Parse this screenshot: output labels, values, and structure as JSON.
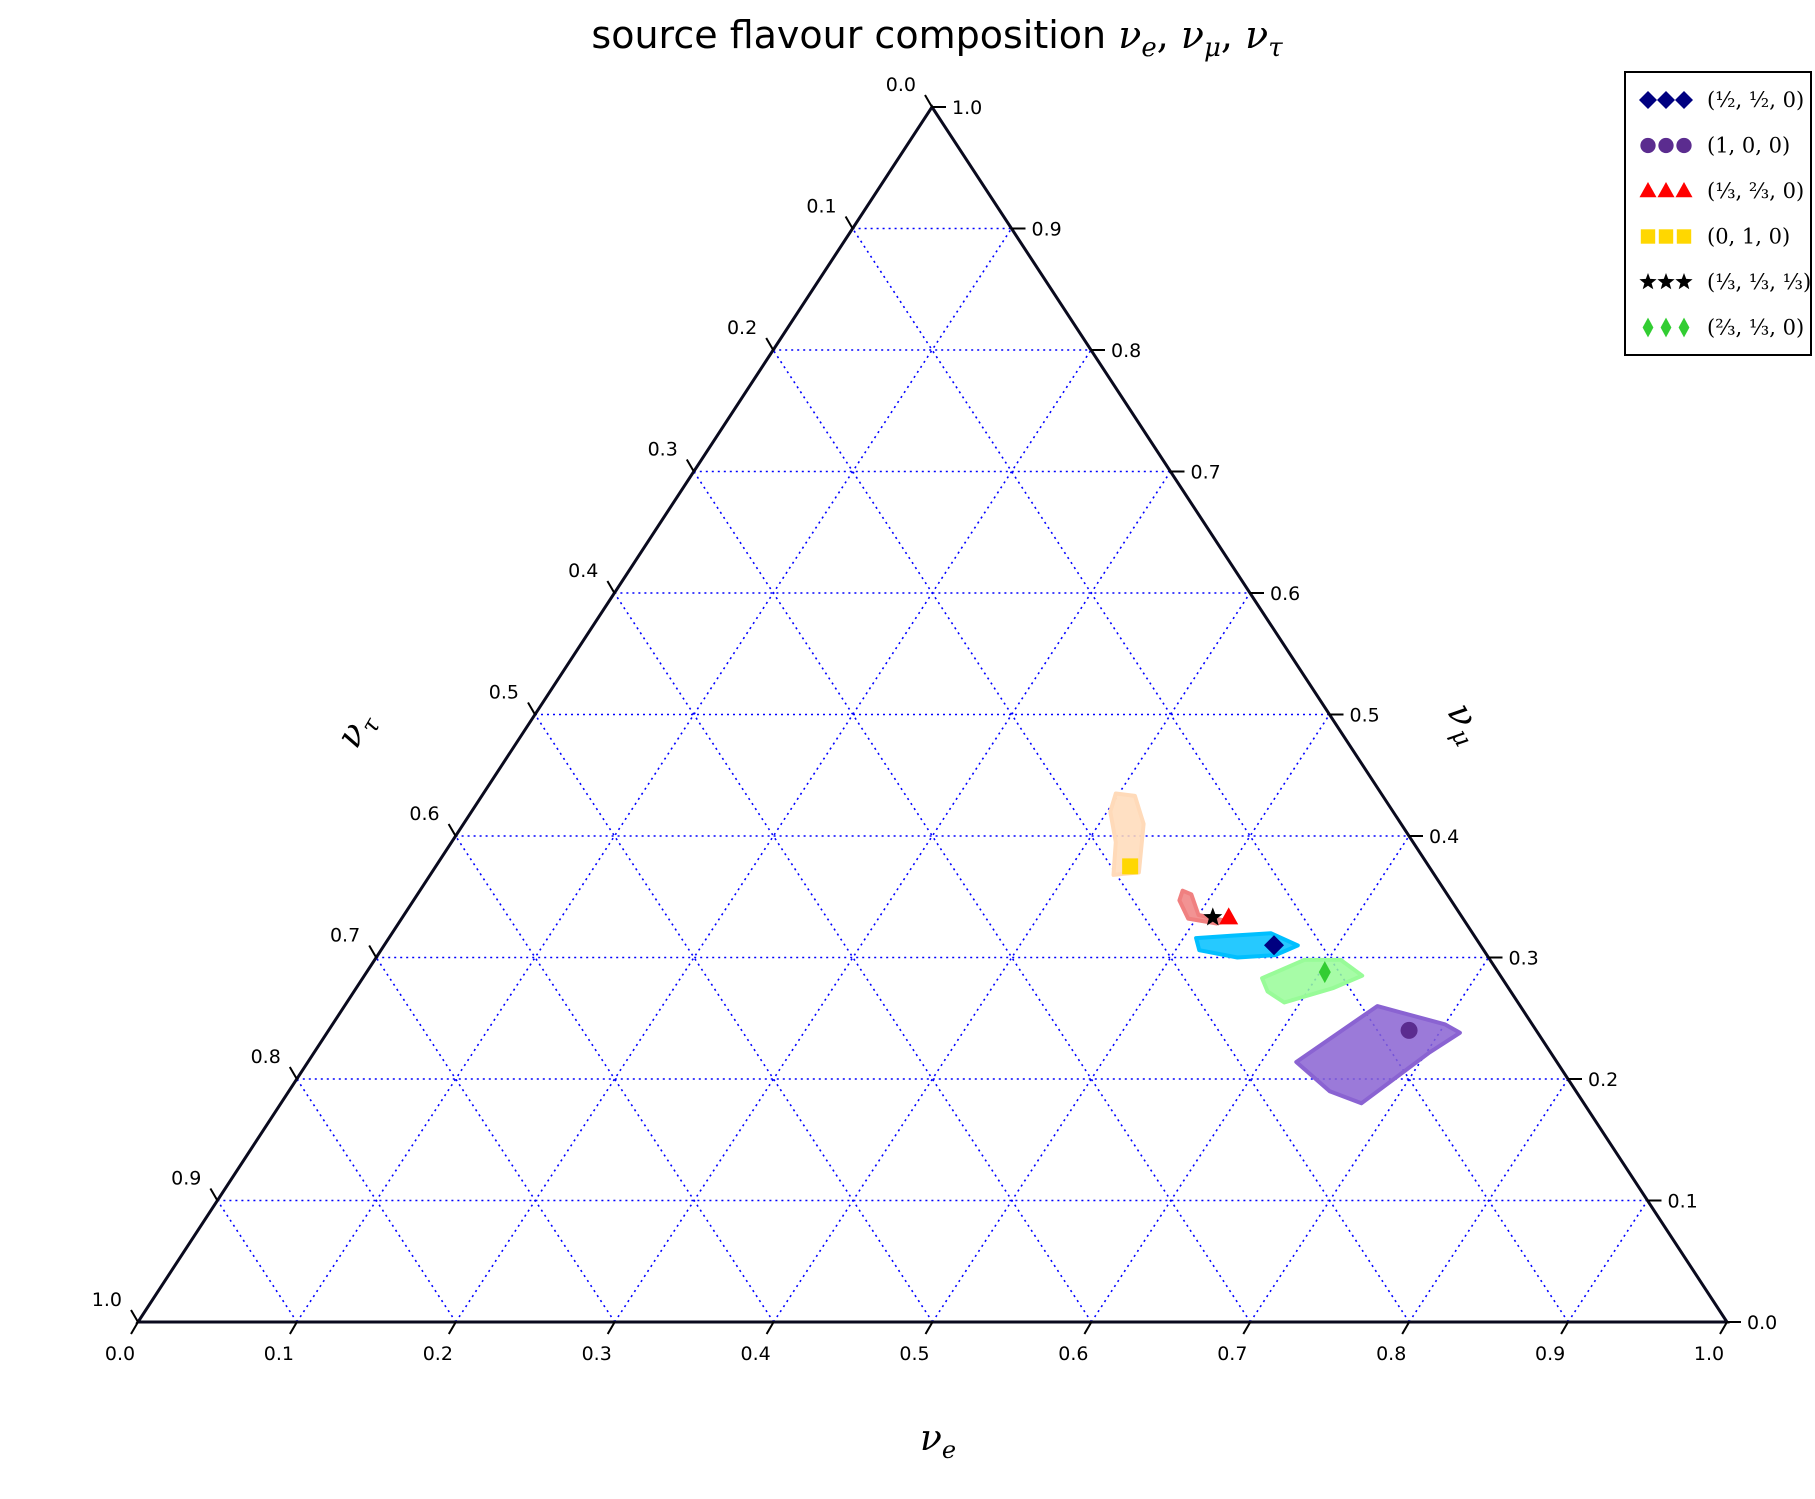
{
  "chart_data": {
    "type": "scatter",
    "subtype": "ternary",
    "title": "source flavour composition",
    "title_math": [
      "ν",
      "e",
      ", ",
      "ν",
      "μ",
      ", ",
      "ν",
      "τ"
    ],
    "axes": {
      "bottom": {
        "label": "ν",
        "label_sub": "e",
        "range": [
          0,
          1
        ]
      },
      "right": {
        "label": "ν",
        "label_sub": "μ",
        "range": [
          0,
          1
        ]
      },
      "left": {
        "label": "ν",
        "label_sub": "τ",
        "range": [
          0,
          1
        ]
      }
    },
    "tick_labels": [
      "0.0",
      "0.1",
      "0.2",
      "0.3",
      "0.4",
      "0.5",
      "0.6",
      "0.7",
      "0.8",
      "0.9",
      "1.0"
    ],
    "grid": true,
    "grid_style": "dotted",
    "grid_color": "#0000ff",
    "legend_position": "top-right",
    "series": [
      {
        "legend": "(½, ½, 0)",
        "marker": "diamond",
        "color": "#000080",
        "point": {
          "e": 0.56,
          "mu": 0.31,
          "tau": 0.13
        },
        "cloud_color": "#00bfff",
        "cloud": [
          {
            "e": 0.508,
            "mu": 0.316,
            "tau": 0.176
          },
          {
            "e": 0.53,
            "mu": 0.318,
            "tau": 0.152
          },
          {
            "e": 0.553,
            "mu": 0.32,
            "tau": 0.127
          },
          {
            "e": 0.575,
            "mu": 0.31,
            "tau": 0.115
          },
          {
            "e": 0.565,
            "mu": 0.302,
            "tau": 0.133
          },
          {
            "e": 0.542,
            "mu": 0.3,
            "tau": 0.158
          },
          {
            "e": 0.515,
            "mu": 0.306,
            "tau": 0.179
          }
        ]
      },
      {
        "legend": "(1, 0, 0)",
        "marker": "circle",
        "color": "#5b2c8f",
        "point": {
          "e": 0.68,
          "mu": 0.24,
          "tau": 0.08
        },
        "cloud_color": "#8a63d2",
        "cloud": [
          {
            "e": 0.622,
            "mu": 0.214,
            "tau": 0.164
          },
          {
            "e": 0.65,
            "mu": 0.26,
            "tau": 0.09
          },
          {
            "e": 0.7,
            "mu": 0.245,
            "tau": 0.055
          },
          {
            "e": 0.713,
            "mu": 0.238,
            "tau": 0.049
          },
          {
            "e": 0.702,
            "mu": 0.222,
            "tau": 0.076
          },
          {
            "e": 0.68,
            "mu": 0.18,
            "tau": 0.14
          },
          {
            "e": 0.655,
            "mu": 0.19,
            "tau": 0.155
          }
        ]
      },
      {
        "legend": "(⅓, ⅔, 0)",
        "marker": "triangle",
        "color": "#ff0000",
        "point": {
          "e": 0.52,
          "mu": 0.333,
          "tau": 0.147
        },
        "cloud_color": "#f08080",
        "cloud": [
          {
            "e": 0.48,
            "mu": 0.355,
            "tau": 0.165
          },
          {
            "e": 0.487,
            "mu": 0.352,
            "tau": 0.161
          },
          {
            "e": 0.5,
            "mu": 0.335,
            "tau": 0.165
          },
          {
            "e": 0.52,
            "mu": 0.33,
            "tau": 0.15
          },
          {
            "e": 0.515,
            "mu": 0.328,
            "tau": 0.157
          },
          {
            "e": 0.495,
            "mu": 0.332,
            "tau": 0.173
          },
          {
            "e": 0.482,
            "mu": 0.347,
            "tau": 0.171
          }
        ]
      },
      {
        "legend": "(0, 1, 0)",
        "marker": "square",
        "color": "#ffd700",
        "point": {
          "e": 0.437,
          "mu": 0.375,
          "tau": 0.188
        },
        "cloud_color": "#ffdab9",
        "cloud": [
          {
            "e": 0.398,
            "mu": 0.435,
            "tau": 0.167
          },
          {
            "e": 0.411,
            "mu": 0.433,
            "tau": 0.156
          },
          {
            "e": 0.428,
            "mu": 0.41,
            "tau": 0.162
          },
          {
            "e": 0.445,
            "mu": 0.37,
            "tau": 0.185
          },
          {
            "e": 0.43,
            "mu": 0.368,
            "tau": 0.202
          },
          {
            "e": 0.418,
            "mu": 0.395,
            "tau": 0.187
          },
          {
            "e": 0.402,
            "mu": 0.42,
            "tau": 0.178
          }
        ]
      },
      {
        "legend": "(⅓, ⅓, ⅓)",
        "marker": "star",
        "color": "#000000",
        "point": {
          "e": 0.51,
          "mu": 0.333,
          "tau": 0.157
        },
        "cloud_color": null,
        "cloud": []
      },
      {
        "legend": "(⅔, ⅓, 0)",
        "marker": "thin-diamond",
        "color": "#32cd32",
        "point": {
          "e": 0.603,
          "mu": 0.288,
          "tau": 0.109
        },
        "cloud_color": "#98fb98",
        "cloud": [
          {
            "e": 0.566,
            "mu": 0.283,
            "tau": 0.151
          },
          {
            "e": 0.585,
            "mu": 0.298,
            "tau": 0.117
          },
          {
            "e": 0.608,
            "mu": 0.298,
            "tau": 0.094
          },
          {
            "e": 0.628,
            "mu": 0.285,
            "tau": 0.087
          },
          {
            "e": 0.615,
            "mu": 0.275,
            "tau": 0.11
          },
          {
            "e": 0.59,
            "mu": 0.263,
            "tau": 0.147
          },
          {
            "e": 0.575,
            "mu": 0.272,
            "tau": 0.153
          }
        ]
      }
    ]
  }
}
